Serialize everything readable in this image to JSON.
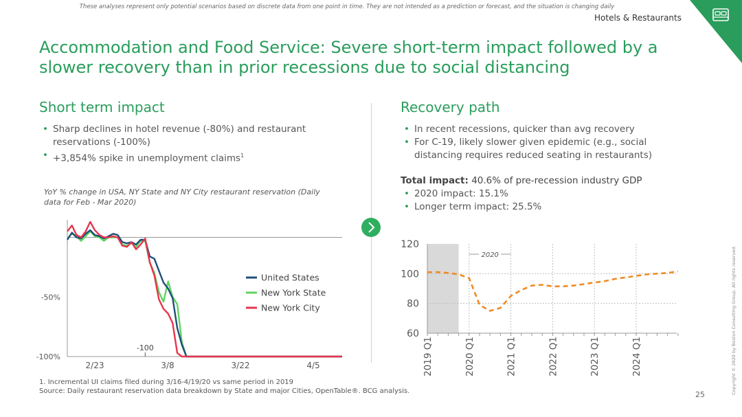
{
  "header": {
    "disclaimer": "These analyses represent only potential scenarios based on discrete data from one point in time. They are not intended as a prediction or forecast, and the situation is changing daily",
    "section": "Hotels & Restaurants",
    "title": "Accommodation and Food Service: Severe short-term impact followed by a slower recovery than in prior recessions due to social distancing",
    "corner_icon": "bed-icon",
    "accent_color": "#2a9d5c"
  },
  "left": {
    "heading": "Short term impact",
    "bullets": [
      "Sharp declines in hotel revenue (-80%) and restaurant reservations (-100%)",
      "+3,854% spike in unemployment claims"
    ],
    "bullet2_sup": "1",
    "chart_caption": "YoY % change in USA, NY State and NY City restaurant reservation (Daily data for Feb - Mar 2020)"
  },
  "right": {
    "heading": "Recovery path",
    "bullets": [
      "In recent recessions, quicker than avg recovery",
      "For C-19, likely slower given epidemic (e.g., social distancing requires reduced seating in restaurants)"
    ],
    "impact_label": "Total impact:",
    "impact_text": " 40.6% of pre-recession industry GDP",
    "impact_bullets": [
      "2020 impact: 15.1%",
      "Longer term impact: 25.5%"
    ]
  },
  "footer": {
    "footnote": "1.   Incremental UI claims filed during 3/16-4/19/20 vs same period in 2019",
    "source": "Source: Daily restaurant reservation data breakdown by State and major Cities, OpenTable®. BCG analysis.",
    "page": "25",
    "copyright": "Copyright © 2020 by Boston Consulting Group. All rights reserved."
  },
  "chart_data": [
    {
      "type": "line",
      "title": "YoY % change in USA, NY State and NY City restaurant reservation (Daily data for Feb - Mar 2020)",
      "x_tick_labels": [
        "2/23",
        "3/8",
        "3/22",
        "4/5"
      ],
      "y_tick_labels": [
        "-50%",
        "-100%"
      ],
      "y_ticks": [
        -50,
        -100
      ],
      "ylim": [
        -100,
        20
      ],
      "annotation": {
        "text": "-100",
        "x": 17,
        "y": -100
      },
      "grid": false,
      "legend_position": "center-right",
      "series": [
        {
          "name": "United States",
          "color": "#1f4e79",
          "values": [
            -2,
            4,
            0,
            -1,
            3,
            6,
            2,
            1,
            -1,
            1,
            3,
            2,
            -4,
            -5,
            -4,
            -6,
            -2,
            -2,
            -16,
            -18,
            -28,
            -38,
            -43,
            -51,
            -76,
            -90,
            -100,
            -100,
            -100,
            -100,
            -100,
            -100,
            -100,
            -100,
            -100,
            -100,
            -100,
            -100,
            -100,
            -100,
            -100,
            -100,
            -100,
            -100,
            -100,
            -100,
            -100,
            -100,
            -100,
            -100,
            -100,
            -100,
            -100,
            -100,
            -100,
            -100,
            -100,
            -100,
            -100,
            -100,
            -100
          ]
        },
        {
          "name": "New York State",
          "color": "#5fd35f",
          "values": [
            -1,
            3,
            1,
            -3,
            1,
            5,
            1,
            0,
            -3,
            0,
            0,
            0,
            -6,
            -7,
            -5,
            -8,
            -3,
            -3,
            -21,
            -30,
            -46,
            -54,
            -37,
            -50,
            -56,
            -88,
            -100,
            -100,
            -100,
            -100,
            -100,
            -100,
            -100,
            -100,
            -100,
            -100,
            -100,
            -100,
            -100,
            -100,
            -100,
            -100,
            -100,
            -100,
            -100,
            -100,
            -100,
            -100,
            -100,
            -100,
            -100,
            -100,
            -100,
            -100,
            -100,
            -100,
            -100,
            -100,
            -100,
            -100,
            -100
          ]
        },
        {
          "name": "New York City",
          "color": "#e8344e",
          "values": [
            5,
            10,
            2,
            0,
            5,
            13,
            6,
            2,
            0,
            0,
            1,
            0,
            -7,
            -8,
            -4,
            -10,
            -6,
            -1,
            -21,
            -32,
            -52,
            -60,
            -64,
            -72,
            -97,
            -100,
            -100,
            -100,
            -100,
            -100,
            -100,
            -100,
            -100,
            -100,
            -100,
            -100,
            -100,
            -100,
            -100,
            -100,
            -100,
            -100,
            -100,
            -100,
            -100,
            -100,
            -100,
            -100,
            -100,
            -100,
            -100,
            -100,
            -100,
            -100,
            -100,
            -100,
            -100,
            -100,
            -100,
            -100,
            -100
          ]
        }
      ]
    },
    {
      "type": "line",
      "title": "",
      "x": [
        "2019 Q1",
        "2019 Q2",
        "2019 Q3",
        "2019 Q4",
        "2020 Q1",
        "2020 Q2",
        "2020 Q3",
        "2020 Q4",
        "2021 Q1",
        "2021 Q2",
        "2021 Q3",
        "2021 Q4",
        "2022 Q1",
        "2022 Q2",
        "2022 Q3",
        "2022 Q4",
        "2023 Q1",
        "2023 Q2",
        "2023 Q3",
        "2023 Q4",
        "2024 Q1",
        "2024 Q2",
        "2024 Q3",
        "2024 Q4",
        "2025 Q1"
      ],
      "x_tick_labels": [
        "2019 Q1",
        "2020 Q1",
        "2021 Q1",
        "2022 Q1",
        "2023 Q1",
        "2024 Q1"
      ],
      "y_tick_labels": [
        "60",
        "80",
        "100",
        "120"
      ],
      "ylim": [
        60,
        120
      ],
      "shaded_period": {
        "from": "2019 Q1",
        "to": "2019 Q4"
      },
      "annotation": {
        "text": "2020",
        "from": "2020 Q1",
        "to": "2021 Q1"
      },
      "grid": true,
      "series": [
        {
          "name": "",
          "color": "#f08a24",
          "style": "dashed",
          "values": [
            101,
            101,
            100.5,
            99.5,
            97,
            79,
            75,
            77,
            85,
            89,
            92,
            92.5,
            91.5,
            91.5,
            92,
            93,
            94,
            95,
            96.5,
            97.5,
            98.5,
            99.5,
            100,
            100.5,
            101.5
          ]
        }
      ]
    }
  ]
}
